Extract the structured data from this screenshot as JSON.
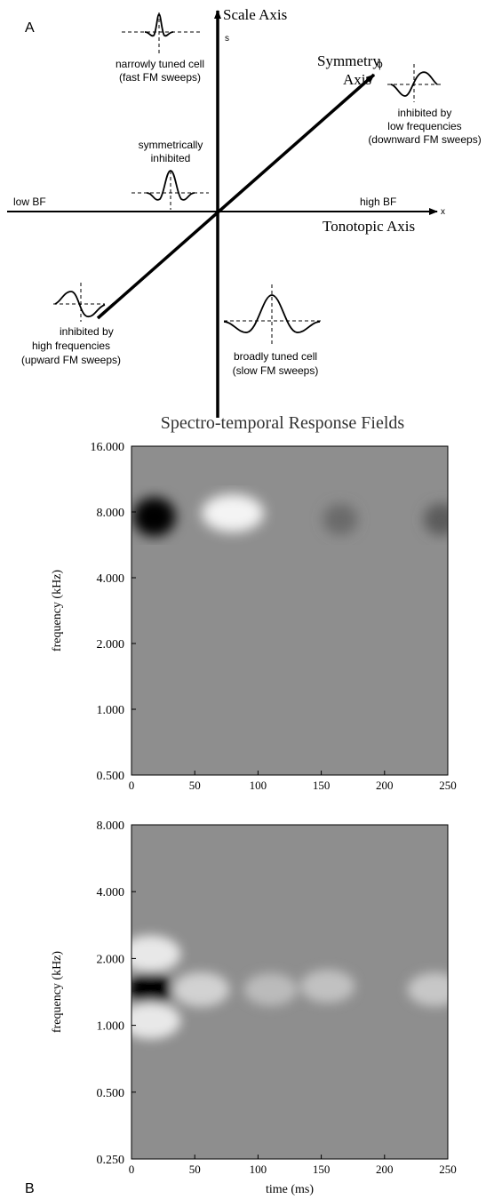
{
  "panel_a": {
    "label": "A",
    "scale_axis": {
      "title": "Scale Axis",
      "symbol": "s"
    },
    "symmetry_axis": {
      "title_line1": "Symmetry",
      "title_line2": "Axis",
      "symbol": "ϕ"
    },
    "tonotopic_axis": {
      "title": "Tonotopic Axis",
      "symbol": "x",
      "low_end": "low BF",
      "high_end": "high BF"
    },
    "cells": [
      {
        "id": "narrow",
        "line1": "narrowly tuned cell",
        "line2": "(fast FM sweeps)",
        "line3": ""
      },
      {
        "id": "symmetric",
        "line1": "symmetrically",
        "line2": "inhibited",
        "line3": ""
      },
      {
        "id": "low-inhib",
        "line1": "inhibited by",
        "line2": "low frequencies",
        "line3": "(downward FM  sweeps)"
      },
      {
        "id": "high-inhib",
        "line1": "inhibited by",
        "line2": "high frequencies",
        "line3": "(upward FM sweeps)"
      },
      {
        "id": "broad",
        "line1": "broadly tuned cell",
        "line2": "(slow FM sweeps)",
        "line3": ""
      }
    ]
  },
  "panel_b": {
    "label": "B",
    "title": "Spectro-temporal Response Fields"
  },
  "chart_data": [
    {
      "type": "heatmap",
      "title": "Spectro-temporal Response Fields",
      "xlabel": "",
      "ylabel": "frequency (kHz)",
      "x_ticks": [
        0,
        50,
        100,
        150,
        200,
        250
      ],
      "y_ticks": [
        "16.000",
        "8.000",
        "4.000",
        "2.000",
        "1.000",
        "0.500"
      ],
      "xlim": [
        0,
        250
      ],
      "ylim_khz": [
        0.5,
        16
      ],
      "y_scale": "log",
      "colormap": "grayscale",
      "features": [
        {
          "t_ms": 18,
          "f_khz": 7.6,
          "sign": -1,
          "strength": 1.0
        },
        {
          "t_ms": 80,
          "f_khz": 7.9,
          "sign": 1,
          "strength": 0.9
        },
        {
          "t_ms": 165,
          "f_khz": 7.4,
          "sign": -1,
          "strength": 0.25
        },
        {
          "t_ms": 245,
          "f_khz": 7.4,
          "sign": -1,
          "strength": 0.35
        }
      ]
    },
    {
      "type": "heatmap",
      "title": "",
      "xlabel": "time (ms)",
      "ylabel": "frequency (kHz)",
      "x_ticks": [
        0,
        50,
        100,
        150,
        200,
        250
      ],
      "y_ticks": [
        "8.000",
        "4.000",
        "2.000",
        "1.000",
        "0.500",
        "0.250"
      ],
      "xlim": [
        0,
        250
      ],
      "ylim_khz": [
        0.25,
        8
      ],
      "y_scale": "log",
      "colormap": "grayscale",
      "features": [
        {
          "t_ms": 15,
          "f_khz": 1.45,
          "sign": -1,
          "strength": 1.0
        },
        {
          "t_ms": 15,
          "f_khz": 2.1,
          "sign": 1,
          "strength": 0.8
        },
        {
          "t_ms": 15,
          "f_khz": 1.05,
          "sign": 1,
          "strength": 0.8
        },
        {
          "t_ms": 55,
          "f_khz": 1.45,
          "sign": 1,
          "strength": 0.6
        },
        {
          "t_ms": 110,
          "f_khz": 1.45,
          "sign": 1,
          "strength": 0.4
        },
        {
          "t_ms": 155,
          "f_khz": 1.5,
          "sign": 1,
          "strength": 0.45
        },
        {
          "t_ms": 240,
          "f_khz": 1.45,
          "sign": 1,
          "strength": 0.5
        }
      ]
    }
  ]
}
